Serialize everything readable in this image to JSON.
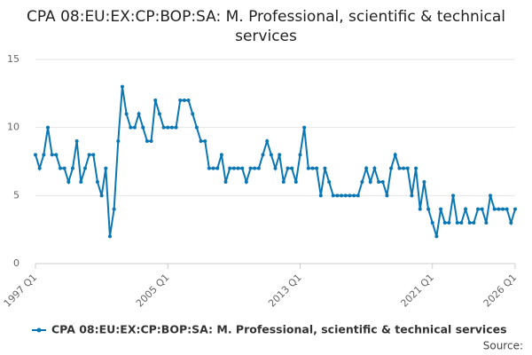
{
  "chart_data": {
    "type": "line",
    "title": "CPA 08:EU:EX:CP:BOP:SA: M. Professional, scientific & technical services",
    "categories": [
      "1997 Q1",
      null,
      null,
      null,
      null,
      null,
      null,
      null,
      null,
      null,
      null,
      null,
      null,
      null,
      null,
      null,
      null,
      null,
      null,
      null,
      null,
      null,
      null,
      null,
      null,
      null,
      null,
      null,
      null,
      null,
      null,
      null,
      "2005 Q1",
      null,
      null,
      null,
      null,
      null,
      null,
      null,
      null,
      null,
      null,
      null,
      null,
      null,
      null,
      null,
      null,
      null,
      null,
      null,
      null,
      null,
      null,
      null,
      null,
      null,
      null,
      null,
      null,
      null,
      null,
      null,
      "2013 Q1",
      null,
      null,
      null,
      null,
      null,
      null,
      null,
      null,
      null,
      null,
      null,
      null,
      null,
      null,
      null,
      null,
      null,
      null,
      null,
      null,
      null,
      null,
      null,
      null,
      null,
      null,
      null,
      null,
      null,
      null,
      null,
      "2021 Q1",
      null,
      null,
      null,
      null,
      null,
      null,
      null,
      null,
      null,
      null,
      null,
      null,
      null,
      null,
      null,
      null,
      null,
      null,
      null,
      "2026 Q1"
    ],
    "series": [
      {
        "name": "CPA 08:EU:EX:CP:BOP:SA: M. Professional, scientific & technical services",
        "color": "#0a77b4",
        "values": [
          8,
          7,
          8,
          10,
          8,
          8,
          7,
          7,
          6,
          7,
          9,
          6,
          7,
          8,
          8,
          6,
          5,
          7,
          2,
          4,
          9,
          13,
          11,
          10,
          10,
          11,
          10,
          9,
          9,
          12,
          11,
          10,
          10,
          10,
          10,
          12,
          12,
          12,
          11,
          10,
          9,
          9,
          7,
          7,
          7,
          8,
          6,
          7,
          7,
          7,
          7,
          6,
          7,
          7,
          7,
          8,
          9,
          8,
          7,
          8,
          6,
          7,
          7,
          6,
          8,
          10,
          7,
          7,
          7,
          5,
          7,
          6,
          5,
          5,
          5,
          5,
          5,
          5,
          5,
          6,
          7,
          6,
          7,
          6,
          6,
          5,
          7,
          8,
          7,
          7,
          7,
          5,
          7,
          4,
          6,
          4,
          3,
          2,
          4,
          3,
          3,
          5,
          3,
          3,
          4,
          3,
          3,
          4,
          4,
          3,
          5,
          4,
          4,
          4,
          4,
          3,
          4
        ]
      }
    ],
    "ylim": [
      0,
      15
    ],
    "yticks": [
      0,
      5,
      10,
      15
    ],
    "grid": true,
    "source": "Source:"
  }
}
